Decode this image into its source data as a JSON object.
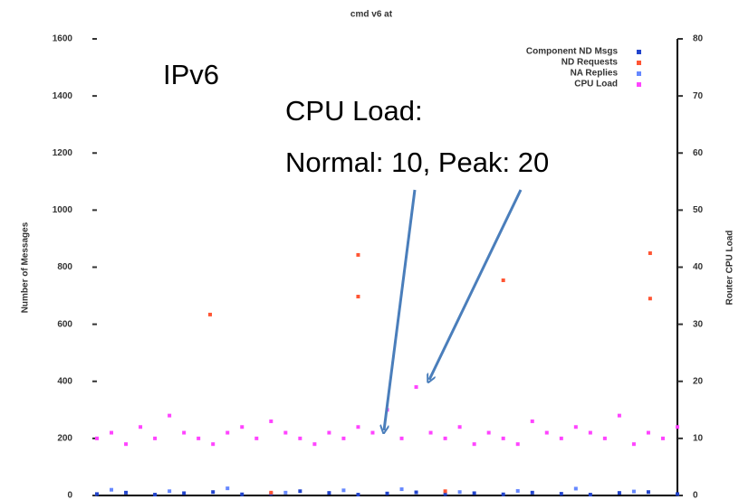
{
  "chart_data": {
    "type": "scatter",
    "title": "cmd v6 at",
    "annotations": [
      "IPv6",
      "CPU Load:",
      "Normal: 10, Peak: 20"
    ],
    "ylabel": "Number of Messages",
    "y2label": "Router CPU Load",
    "xlim": [
      0,
      100
    ],
    "ylim": [
      0,
      1600
    ],
    "yticks": [
      0,
      200,
      400,
      600,
      800,
      1000,
      1200,
      1400,
      1600
    ],
    "y2lim": [
      0,
      80
    ],
    "y2ticks": [
      0,
      10,
      20,
      30,
      40,
      50,
      60,
      70,
      80
    ],
    "series": [
      {
        "name": "Component ND Msgs",
        "color": "#2244cc",
        "x": [
          0,
          5,
          10,
          15,
          20,
          25,
          30,
          35,
          40,
          45,
          50,
          55,
          60,
          65,
          70,
          75,
          80,
          85,
          90,
          95,
          100
        ],
        "values": [
          5,
          10,
          3,
          8,
          12,
          4,
          6,
          15,
          9,
          3,
          7,
          11,
          5,
          8,
          4,
          10,
          6,
          3,
          9,
          12,
          5
        ]
      },
      {
        "name": "ND Requests",
        "color": "#ff5533",
        "x": [
          19.5,
          45,
          45,
          70,
          95.3,
          95.3,
          30,
          60
        ],
        "values": [
          634,
          843,
          697,
          754,
          849,
          690,
          10,
          15
        ]
      },
      {
        "name": "NA Replies",
        "color": "#6688ff",
        "x": [
          2.5,
          12.5,
          22.5,
          32.5,
          42.5,
          52.5,
          62.5,
          72.5,
          82.5,
          92.5
        ],
        "values": [
          20,
          15,
          25,
          10,
          18,
          22,
          12,
          16,
          24,
          14
        ]
      },
      {
        "name": "CPU Load",
        "color": "#ff44ff",
        "axis": "y2",
        "x": [
          0,
          2.5,
          5,
          7.5,
          10,
          12.5,
          15,
          17.5,
          20,
          22.5,
          25,
          27.5,
          30,
          32.5,
          35,
          37.5,
          40,
          42.5,
          45,
          47.5,
          50,
          52.5,
          55,
          57.5,
          60,
          62.5,
          65,
          67.5,
          70,
          72.5,
          75,
          77.5,
          80,
          82.5,
          85,
          87.5,
          90,
          92.5,
          95,
          97.5,
          100
        ],
        "values": [
          10,
          11,
          9,
          12,
          10,
          14,
          11,
          10,
          9,
          11,
          12,
          10,
          13,
          11,
          10,
          9,
          11,
          10,
          12,
          11,
          15,
          10,
          19,
          11,
          10,
          12,
          9,
          11,
          10,
          9,
          13,
          11,
          10,
          12,
          11,
          10,
          14,
          9,
          11,
          10,
          12
        ]
      }
    ]
  }
}
